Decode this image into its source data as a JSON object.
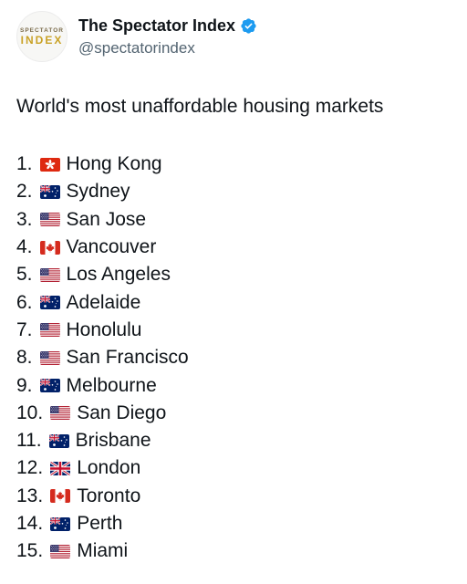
{
  "account": {
    "display_name": "The Spectator Index",
    "handle": "@spectatorindex",
    "avatar_line1": "SPECTATOR",
    "avatar_line2": "INDEX",
    "verified_color": "#1d9bf0"
  },
  "tweet": {
    "title": "World's most unaffordable housing markets",
    "items": [
      {
        "rank": "1.",
        "flag": "hong-kong-flag-icon",
        "city": "Hong Kong"
      },
      {
        "rank": "2.",
        "flag": "australia-flag-icon",
        "city": "Sydney"
      },
      {
        "rank": "3.",
        "flag": "usa-flag-icon",
        "city": "San Jose"
      },
      {
        "rank": "4.",
        "flag": "canada-flag-icon",
        "city": "Vancouver"
      },
      {
        "rank": "5.",
        "flag": "usa-flag-icon",
        "city": "Los Angeles"
      },
      {
        "rank": "6.",
        "flag": "australia-flag-icon",
        "city": "Adelaide"
      },
      {
        "rank": "7.",
        "flag": "usa-flag-icon",
        "city": "Honolulu"
      },
      {
        "rank": "8.",
        "flag": "usa-flag-icon",
        "city": "San Francisco"
      },
      {
        "rank": "9.",
        "flag": "australia-flag-icon",
        "city": "Melbourne"
      },
      {
        "rank": "10.",
        "flag": "usa-flag-icon",
        "city": "San Diego"
      },
      {
        "rank": "11.",
        "flag": "australia-flag-icon",
        "city": "Brisbane"
      },
      {
        "rank": "12.",
        "flag": "uk-flag-icon",
        "city": "London"
      },
      {
        "rank": "13.",
        "flag": "canada-flag-icon",
        "city": "Toronto"
      },
      {
        "rank": "14.",
        "flag": "australia-flag-icon",
        "city": "Perth"
      },
      {
        "rank": "15.",
        "flag": "usa-flag-icon",
        "city": "Miami"
      }
    ]
  }
}
